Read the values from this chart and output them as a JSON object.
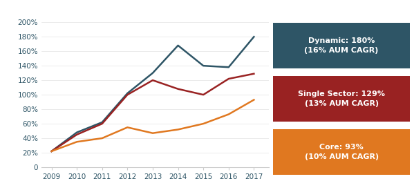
{
  "years": [
    2009,
    2010,
    2011,
    2012,
    2013,
    2014,
    2015,
    2016,
    2017
  ],
  "dynamic": [
    22,
    48,
    62,
    102,
    130,
    168,
    140,
    138,
    180
  ],
  "single_sector": [
    22,
    45,
    60,
    100,
    120,
    108,
    100,
    122,
    129
  ],
  "core": [
    22,
    35,
    40,
    55,
    47,
    52,
    60,
    73,
    93
  ],
  "dynamic_color": "#2e5566",
  "single_sector_color": "#992222",
  "core_color": "#e07820",
  "background_color": "#ffffff",
  "dynamic_label": "Dynamic: 180%\n(16% AUM CAGR)",
  "single_sector_label": "Single Sector: 129%\n(13% AUM CAGR)",
  "core_label": "Core: 93%\n(10% AUM CAGR)",
  "dynamic_box_color": "#2e5566",
  "single_sector_box_color": "#992222",
  "core_box_color": "#e07820",
  "ytick_labels": [
    "0",
    "20%",
    "40%",
    "60%",
    "80%",
    "100%",
    "120%",
    "140%",
    "160%",
    "180%",
    "200%"
  ],
  "ytick_values": [
    0,
    20,
    40,
    60,
    80,
    100,
    120,
    140,
    160,
    180,
    200
  ],
  "ylim": [
    0,
    215
  ],
  "xlim": [
    2008.6,
    2017.6
  ],
  "linewidth": 1.8,
  "tick_label_color": "#2e5566",
  "tick_label_fontsize": 7.5
}
